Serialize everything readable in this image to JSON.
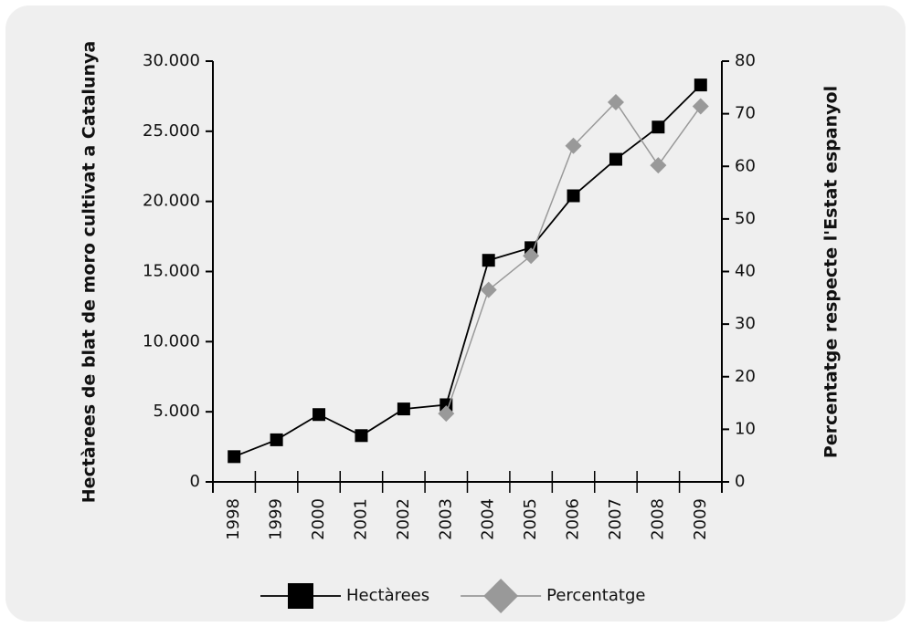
{
  "chart_data": {
    "type": "line",
    "y_label": "Hectàrees de blat de moro cultivat a Catalunya",
    "y2_label": "Percentatge respecte l'Estat espanyol",
    "categories": [
      "1998",
      "1999",
      "2000",
      "2001",
      "2002",
      "2003",
      "2004",
      "2005",
      "2006",
      "2007",
      "2008",
      "2009"
    ],
    "series": [
      {
        "name": "Hectàrees",
        "color": "#000000",
        "marker": "square",
        "values": [
          1800,
          3000,
          4800,
          3300,
          5200,
          5500,
          15800,
          16700,
          20400,
          23000,
          25300,
          28300
        ]
      },
      {
        "name": "Percentatge",
        "color": "#999999",
        "marker": "diamond",
        "axis": "y2",
        "values": [
          null,
          null,
          null,
          null,
          null,
          13,
          36.5,
          43,
          63.9,
          72.2,
          60.2,
          71.4
        ]
      }
    ],
    "ylim": [
      0,
      30000
    ],
    "yticks": [
      0,
      {
        "value": 5000,
        "label": "5.000"
      },
      {
        "value": 10000,
        "label": "10.000"
      },
      {
        "value": 15000,
        "label": "15.000"
      },
      {
        "value": 20000,
        "label": "20.000"
      },
      {
        "value": 25000,
        "label": "25.000"
      },
      {
        "value": 30000,
        "label": "30.000"
      }
    ],
    "y2lim": [
      0,
      80
    ],
    "y2ticks": [
      0,
      10,
      20,
      30,
      40,
      50,
      60,
      70,
      80
    ],
    "legend": "bottom"
  }
}
